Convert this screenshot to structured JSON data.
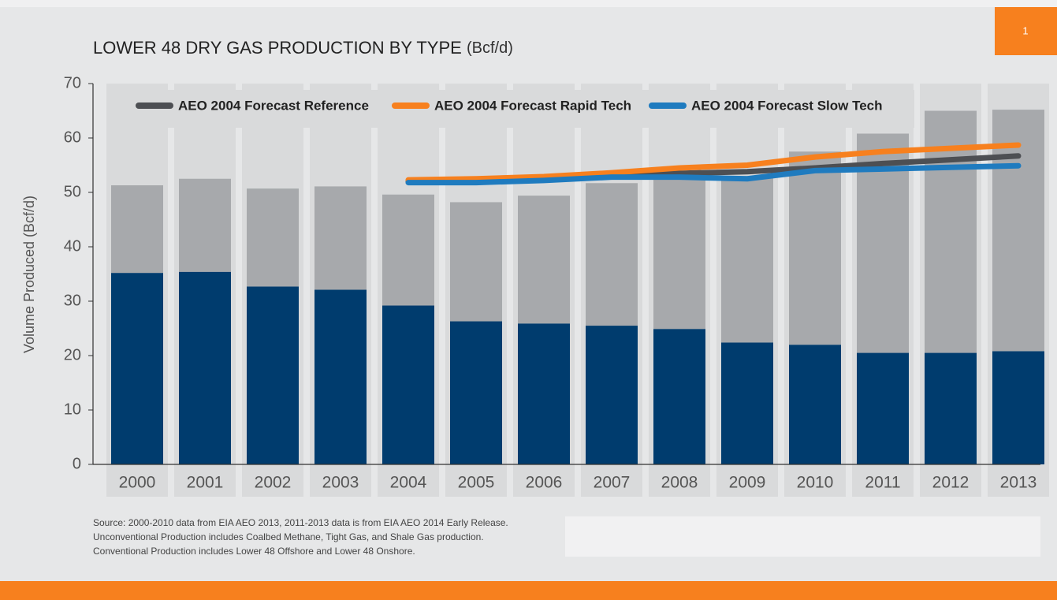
{
  "page_number": "1",
  "chart_data": {
    "type": "bar",
    "title": "LOWER 48 DRY GAS PRODUCTION BY TYPE",
    "title_unit": "(Bcf/d)",
    "ylabel": "Volume Produced (Bcf/d)",
    "categories": [
      "2000",
      "2001",
      "2002",
      "2003",
      "2004",
      "2005",
      "2006",
      "2007",
      "2008",
      "2009",
      "2010",
      "2011",
      "2012",
      "2013"
    ],
    "stacked": true,
    "series": [
      {
        "name": "Conventional Production",
        "color": "#003c6e",
        "values": [
          35.2,
          35.4,
          32.7,
          32.1,
          29.2,
          26.3,
          25.9,
          25.5,
          24.9,
          22.4,
          22.0,
          20.5,
          20.5,
          20.8
        ]
      },
      {
        "name": "Unconventional Production",
        "color": "#a7a9ac",
        "values": [
          16.1,
          17.1,
          18.0,
          19.0,
          20.4,
          21.9,
          23.5,
          26.2,
          28.6,
          30.6,
          35.5,
          40.3,
          44.5,
          44.4
        ]
      }
    ],
    "lines": [
      {
        "name": "AEO 2004 Forecast Reference",
        "color": "#4d4f53",
        "values": [
          null,
          null,
          null,
          null,
          52.0,
          52.0,
          52.5,
          53.0,
          53.5,
          53.8,
          54.5,
          55.3,
          56.0,
          56.7
        ]
      },
      {
        "name": "AEO 2004 Forecast Rapid Tech",
        "color": "#f7801e",
        "values": [
          null,
          null,
          null,
          null,
          52.3,
          52.5,
          52.9,
          53.6,
          54.5,
          55.0,
          56.5,
          57.5,
          58.1,
          58.7
        ]
      },
      {
        "name": "AEO 2004 Forecast Slow Tech",
        "color": "#1f7bbf",
        "values": [
          null,
          null,
          null,
          null,
          51.8,
          51.8,
          52.2,
          52.8,
          52.8,
          52.5,
          54.0,
          54.3,
          54.6,
          54.9
        ]
      }
    ],
    "ylim": [
      0,
      70
    ],
    "yticks": [
      0,
      10,
      20,
      30,
      40,
      50,
      60,
      70
    ],
    "source": [
      "Source: 2000-2010 data from EIA AEO 2013, 2011-2013 data is from EIA AEO 2014 Early Release.",
      "Unconventional Production includes Coalbed Methane, Tight Gas, and Shale Gas production.",
      "Conventional Production includes Lower 48 Offshore and Lower 48 Onshore."
    ]
  }
}
